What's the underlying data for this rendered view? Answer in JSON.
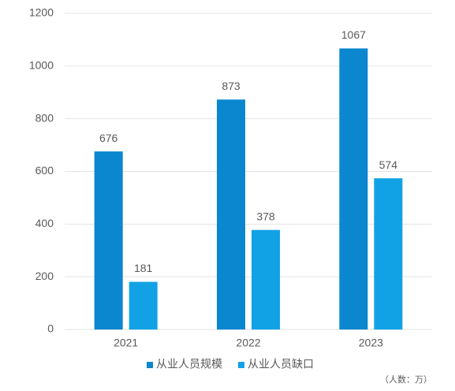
{
  "chart_data": {
    "type": "bar",
    "categories": [
      "2021",
      "2022",
      "2023"
    ],
    "series": [
      {
        "name": "从业人员规模",
        "color": "#0a87cf",
        "values": [
          676,
          873,
          1067
        ]
      },
      {
        "name": "从业人员缺口",
        "color": "#11a2e6",
        "values": [
          181,
          378,
          574
        ]
      }
    ],
    "ylim": [
      0,
      1200
    ],
    "yticks": [
      0,
      200,
      400,
      600,
      800,
      1000,
      1200
    ],
    "grid": true,
    "legend": "bottom",
    "unit_note": "（人数：万）"
  }
}
